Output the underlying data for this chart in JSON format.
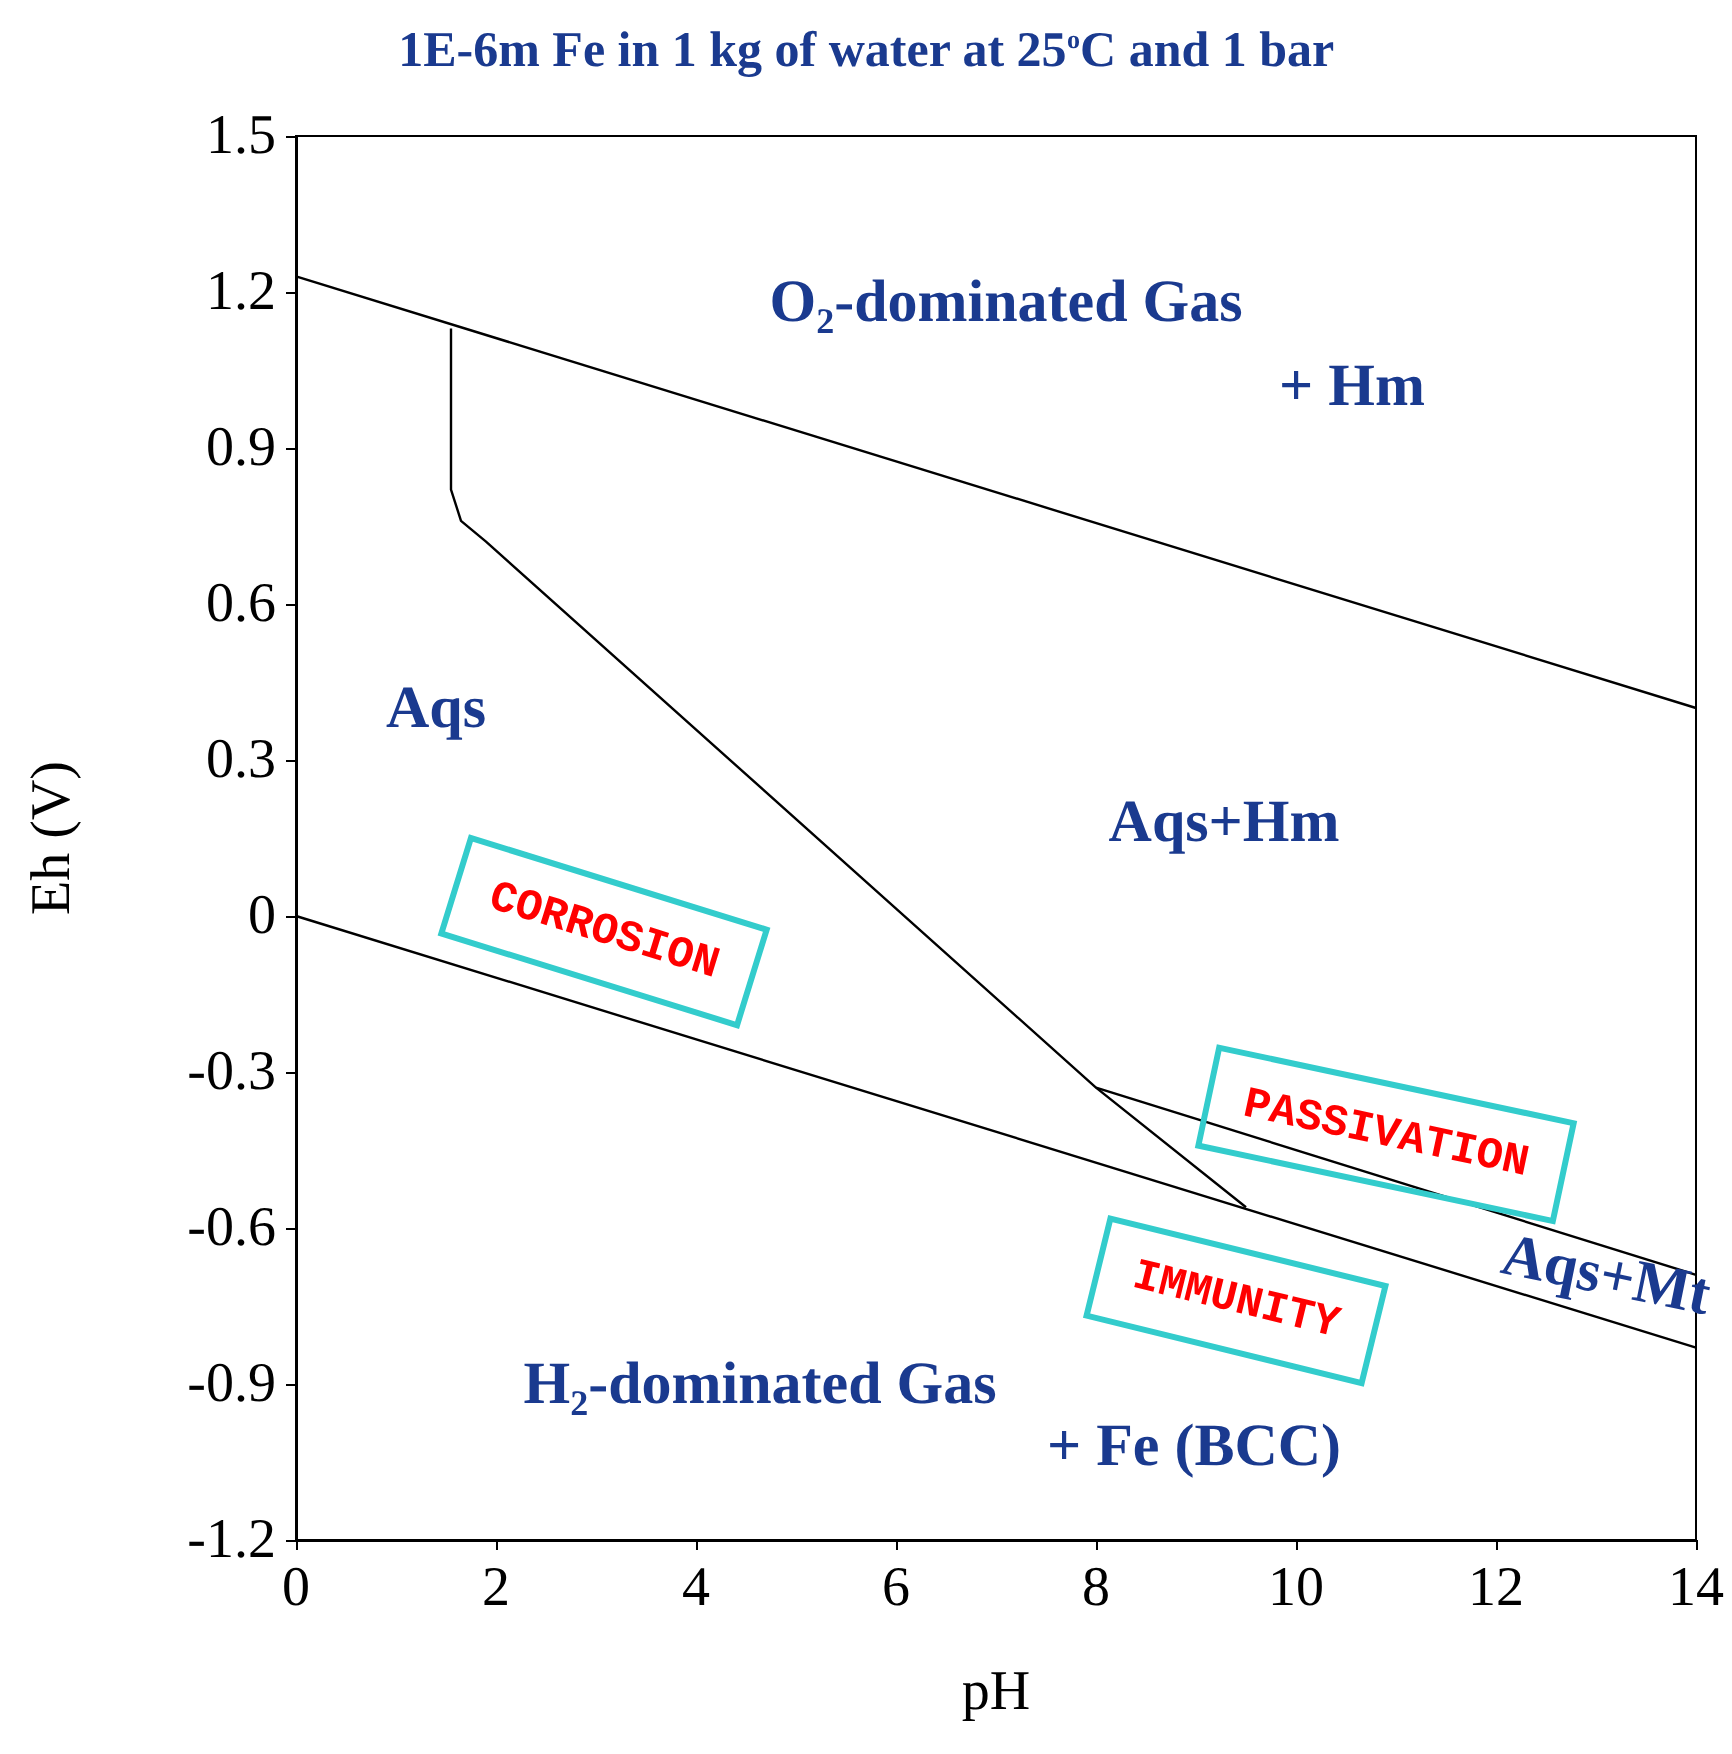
{
  "chart_data": {
    "type": "line",
    "title": "1E-6m Fe in 1 kg of water at 25$^{o}$C and 1 bar",
    "xlabel": "pH",
    "ylabel": "Eh (V)",
    "series": [
      {
        "color": "#000000",
        "x": [
          0,
          14
        ],
        "values": [
          1.23,
          0.4
        ]
      },
      {
        "color": "#000000",
        "x": [
          0,
          14
        ],
        "values": [
          0,
          -0.83
        ]
      },
      {
        "color": "#000000",
        "x": [
          1.55,
          1.55,
          1.65,
          1.9,
          8,
          9.5
        ],
        "values": [
          1.13,
          0.82,
          0.76,
          0.72,
          -0.33,
          -0.56
        ]
      },
      {
        "color": "#000000",
        "x": [
          8,
          14
        ],
        "values": [
          -0.33,
          -0.69
        ]
      }
    ],
    "xlim": [
      0,
      14
    ],
    "xticks": [
      0,
      2,
      4,
      6,
      8,
      10,
      12,
      14
    ],
    "ylim": [
      -1.2,
      1.5
    ],
    "yticks": [
      -1.2,
      -0.9,
      -0.6,
      -0.3,
      0,
      0.3,
      0.6,
      0.9,
      1.2,
      1.5
    ],
    "annotations": [
      "O₂-dominated Gas",
      "+ Hm",
      "Aqs",
      "Aqs+Hm",
      "Aqs+Mt",
      "H₂-dominated Gas",
      "+ Fe (BCC)",
      "CORROSION",
      "PASSIVATION",
      "IMMUNITY"
    ],
    "grid": false,
    "marker": "none",
    "line_style": "solid"
  }
}
